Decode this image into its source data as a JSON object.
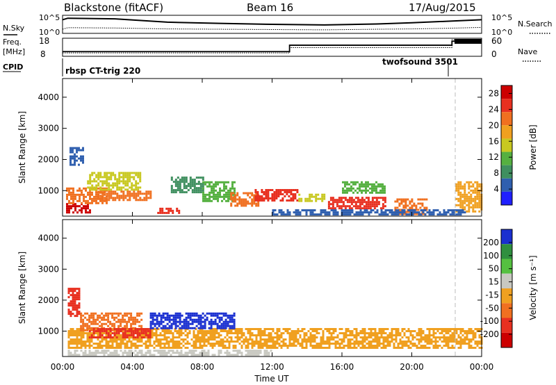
{
  "header": {
    "title": "Blackstone (fitACF)",
    "beam": "Beam 16",
    "date": "17/Aug/2015"
  },
  "top_panels": {
    "nsky_label": "N.Sky",
    "nsearch_label": "N.Search",
    "noise_tick_hi": "10^5",
    "noise_tick_lo": "10^0",
    "freq_label_1": "Freq.",
    "freq_label_2": "[MHz]",
    "freq_ticks": [
      "18",
      "8"
    ],
    "nave_label": "Nave",
    "nave_ticks": [
      "60",
      "0"
    ],
    "cpid_label": "CPID",
    "cpid_1": "rbsp CT-trig 220",
    "cpid_2": "twofsound 3501"
  },
  "colors": {
    "power_scale": [
      "#1f1fff",
      "#2f5faf",
      "#3f8f5f",
      "#55b040",
      "#c8c820",
      "#f0a020",
      "#f07020",
      "#e83020",
      "#cc0000"
    ],
    "velocity_scale": [
      "#1a2fd0",
      "#2f8f3f",
      "#55c040",
      "#c8c8c0",
      "#f0a020",
      "#f07020",
      "#e83020",
      "#cc0000"
    ]
  },
  "chart_data": [
    {
      "type": "line",
      "name": "noise",
      "x": [
        0,
        0.3,
        3,
        6,
        9,
        12,
        15,
        18,
        20,
        22,
        24
      ],
      "series": [
        {
          "name": "N.Sky",
          "values": [
            4.0,
            4.5,
            4.3,
            3.2,
            2.8,
            2.5,
            2.3,
            2.6,
            3.0,
            3.5,
            4.0
          ]
        },
        {
          "name": "N.Search",
          "values": [
            0.9,
            1.4,
            1.3,
            1.0,
            0.9,
            0.8,
            0.7,
            0.9,
            1.0,
            1.2,
            1.5
          ]
        }
      ]
    },
    {
      "type": "line",
      "name": "freq-nave",
      "x": [
        0,
        0.3,
        13,
        22.3,
        24
      ],
      "series": [
        {
          "name": "Freq.",
          "values": [
            10.5,
            10.5,
            14.5,
            17.0,
            17.0
          ]
        },
        {
          "name": "Nave",
          "values": [
            10,
            10,
            30,
            60,
            60
          ]
        }
      ]
    },
    {
      "type": "heatmap",
      "name": "power",
      "xlabel": "",
      "ylabel": "Slant Range [km]",
      "xlim": [
        0,
        24
      ],
      "ylim": [
        180,
        4600
      ],
      "y_ticks": [
        1000,
        2000,
        3000,
        4000
      ],
      "colorbar": {
        "label": "Power [dB]",
        "ticks": [
          4,
          8,
          12,
          16,
          20,
          24,
          28
        ],
        "range": [
          0,
          30
        ]
      },
      "regions": [
        {
          "x": [
            0.2,
            1.6
          ],
          "y": [
            300,
            600
          ],
          "v": 28
        },
        {
          "x": [
            0.2,
            2.5
          ],
          "y": [
            600,
            1100
          ],
          "v": 20
        },
        {
          "x": [
            1.4,
            4.5
          ],
          "y": [
            1000,
            1600
          ],
          "v": 14
        },
        {
          "x": [
            2.0,
            5.0
          ],
          "y": [
            700,
            1000
          ],
          "v": 22
        },
        {
          "x": [
            5.3,
            6.7
          ],
          "y": [
            250,
            450
          ],
          "v": 24
        },
        {
          "x": [
            6.2,
            8.0
          ],
          "y": [
            950,
            1450
          ],
          "v": 8
        },
        {
          "x": [
            8.0,
            9.8
          ],
          "y": [
            650,
            1300
          ],
          "v": 12
        },
        {
          "x": [
            9.6,
            11.2
          ],
          "y": [
            500,
            950
          ],
          "v": 20
        },
        {
          "x": [
            11.0,
            13.5
          ],
          "y": [
            700,
            1050
          ],
          "v": 24
        },
        {
          "x": [
            13.5,
            15.0
          ],
          "y": [
            650,
            900
          ],
          "v": 16
        },
        {
          "x": [
            15.2,
            18.5
          ],
          "y": [
            400,
            800
          ],
          "v": 26
        },
        {
          "x": [
            16.0,
            18.5
          ],
          "y": [
            900,
            1300
          ],
          "v": 12
        },
        {
          "x": [
            19.0,
            20.8
          ],
          "y": [
            250,
            750
          ],
          "v": 20
        },
        {
          "x": [
            22.5,
            24.0
          ],
          "y": [
            350,
            1300
          ],
          "v": 18
        },
        {
          "x": [
            0.4,
            1.2
          ],
          "y": [
            1800,
            2400
          ],
          "v": 6
        },
        {
          "x": [
            12.0,
            23.0
          ],
          "y": [
            250,
            400
          ],
          "v": 6
        }
      ]
    },
    {
      "type": "heatmap",
      "name": "velocity",
      "xlabel": "Time UT",
      "ylabel": "Slant Range [km]",
      "x_ticks": [
        "00:00",
        "04:00",
        "08:00",
        "12:00",
        "16:00",
        "20:00",
        "00:00"
      ],
      "xlim": [
        0,
        24
      ],
      "ylim": [
        180,
        4600
      ],
      "y_ticks": [
        1000,
        2000,
        3000,
        4000
      ],
      "colorbar": {
        "label": "Velocity [m s⁻¹]",
        "ticks": [
          200,
          100,
          50,
          15,
          -15,
          -50,
          -100,
          -200
        ],
        "range": [
          -250,
          250
        ]
      },
      "regions": [
        {
          "x": [
            0.3,
            24.0
          ],
          "y": [
            450,
            1100
          ],
          "v": 0
        },
        {
          "x": [
            1.0,
            4.5
          ],
          "y": [
            1000,
            1600
          ],
          "v": -80
        },
        {
          "x": [
            1.5,
            5.0
          ],
          "y": [
            800,
            1100
          ],
          "v": -130
        },
        {
          "x": [
            5.0,
            9.8
          ],
          "y": [
            1100,
            1600
          ],
          "v": 200
        },
        {
          "x": [
            0.3,
            12.0
          ],
          "y": [
            250,
            400
          ],
          "v": 30
        },
        {
          "x": [
            0.3,
            1.0
          ],
          "y": [
            1500,
            2400
          ],
          "v": -150
        }
      ]
    }
  ]
}
